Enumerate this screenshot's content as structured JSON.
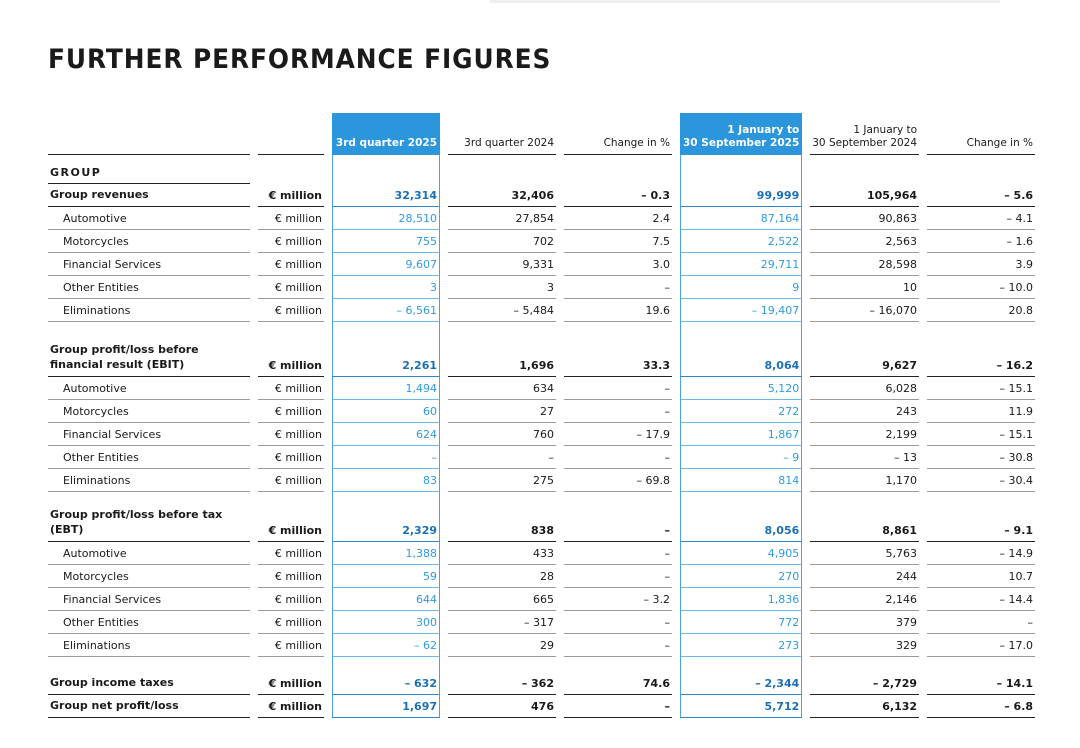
{
  "header": {
    "title": "FURTHER PERFORMANCE FIGURES"
  },
  "table": {
    "columns": [
      [
        "3rd quarter 2025"
      ],
      [
        "3rd quarter 2024"
      ],
      [
        "Change in %"
      ],
      [
        "1 January to",
        "30 September 2025"
      ],
      [
        "1 January to",
        "30 September 2024"
      ],
      [
        "Change in %"
      ]
    ],
    "heading": "GROUP",
    "sections": [
      {
        "totals": [
          {
            "label": "Group revenues",
            "unit": "€ million",
            "values": [
              "32,314",
              "32,406",
              "– 0.3",
              "99,999",
              "105,964",
              "– 5.6"
            ]
          }
        ],
        "items": [
          {
            "label": "Automotive",
            "unit": "€ million",
            "values": [
              "28,510",
              "27,854",
              "2.4",
              "87,164",
              "90,863",
              "– 4.1"
            ]
          },
          {
            "label": "Motorcycles",
            "unit": "€ million",
            "values": [
              "755",
              "702",
              "7.5",
              "2,522",
              "2,563",
              "– 1.6"
            ]
          },
          {
            "label": "Financial Services",
            "unit": "€ million",
            "values": [
              "9,607",
              "9,331",
              "3.0",
              "29,711",
              "28,598",
              "3.9"
            ]
          },
          {
            "label": "Other Entities",
            "unit": "€ million",
            "values": [
              "3",
              "3",
              "–",
              "9",
              "10",
              "– 10.0"
            ]
          },
          {
            "label": "Eliminations",
            "unit": "€ million",
            "values": [
              "– 6,561",
              "– 5,484",
              "19.6",
              "– 19,407",
              "– 16,070",
              "20.8"
            ]
          }
        ]
      },
      {
        "totals": [
          {
            "label": "Group profit/loss before financial result (EBIT)",
            "unit": "€ million",
            "values": [
              "2,261",
              "1,696",
              "33.3",
              "8,064",
              "9,627",
              "– 16.2"
            ]
          }
        ],
        "items": [
          {
            "label": "Automotive",
            "unit": "€ million",
            "values": [
              "1,494",
              "634",
              "–",
              "5,120",
              "6,028",
              "– 15.1"
            ]
          },
          {
            "label": "Motorcycles",
            "unit": "€ million",
            "values": [
              "60",
              "27",
              "–",
              "272",
              "243",
              "11.9"
            ]
          },
          {
            "label": "Financial Services",
            "unit": "€ million",
            "values": [
              "624",
              "760",
              "– 17.9",
              "1,867",
              "2,199",
              "– 15.1"
            ]
          },
          {
            "label": "Other Entities",
            "unit": "€ million",
            "values": [
              "–",
              "–",
              "–",
              "– 9",
              "– 13",
              "– 30.8"
            ]
          },
          {
            "label": "Eliminations",
            "unit": "€ million",
            "values": [
              "83",
              "275",
              "– 69.8",
              "814",
              "1,170",
              "– 30.4"
            ]
          }
        ]
      },
      {
        "totals": [
          {
            "label": "Group profit/loss before tax (EBT)",
            "unit": "€ million",
            "values": [
              "2,329",
              "838",
              "–",
              "8,056",
              "8,861",
              "– 9.1"
            ]
          }
        ],
        "items": [
          {
            "label": "Automotive",
            "unit": "€ million",
            "values": [
              "1,388",
              "433",
              "–",
              "4,905",
              "5,763",
              "– 14.9"
            ]
          },
          {
            "label": "Motorcycles",
            "unit": "€ million",
            "values": [
              "59",
              "28",
              "–",
              "270",
              "244",
              "10.7"
            ]
          },
          {
            "label": "Financial Services",
            "unit": "€ million",
            "values": [
              "644",
              "665",
              "– 3.2",
              "1,836",
              "2,146",
              "– 14.4"
            ]
          },
          {
            "label": "Other Entities",
            "unit": "€ million",
            "values": [
              "300",
              "– 317",
              "–",
              "772",
              "379",
              "–"
            ]
          },
          {
            "label": "Eliminations",
            "unit": "€ million",
            "values": [
              "– 62",
              "29",
              "–",
              "273",
              "329",
              "– 17.0"
            ]
          }
        ]
      },
      {
        "totals": [
          {
            "label": "Group income taxes",
            "unit": "€ million",
            "values": [
              "– 632",
              "– 362",
              "74.6",
              "– 2,344",
              "– 2,729",
              "– 14.1"
            ]
          },
          {
            "label": "Group net profit/loss",
            "unit": "€ million",
            "values": [
              "1,697",
              "476",
              "–",
              "5,712",
              "6,132",
              "– 6.8"
            ]
          }
        ]
      }
    ]
  }
}
